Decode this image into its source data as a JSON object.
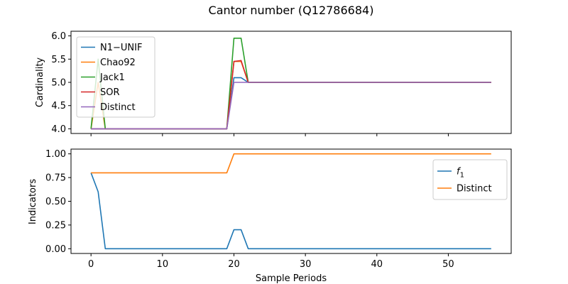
{
  "figure": {
    "title": "Cantor number (Q12786684)",
    "xlabel": "Sample Periods"
  },
  "chart_data": [
    {
      "type": "line",
      "ylabel": "Cardinality",
      "xlim": [
        -2.8,
        58.8
      ],
      "ylim": [
        3.9,
        6.1
      ],
      "xticks": [
        0,
        10,
        20,
        30,
        40,
        50
      ],
      "show_x_tick_labels": false,
      "yticks": [
        4.0,
        4.5,
        5.0,
        5.5,
        6.0
      ],
      "ytick_labels": [
        "4.0",
        "4.5",
        "5.0",
        "5.5",
        "6.0"
      ],
      "legend_position": "upper-left",
      "grid": false,
      "x_range": [
        0,
        56
      ],
      "series": [
        {
          "name": "N1−UNIF",
          "color": "#1f77b4",
          "points": [
            [
              0,
              4
            ],
            [
              1,
              4
            ],
            [
              19,
              4
            ],
            [
              20,
              5.1
            ],
            [
              21,
              5.1
            ],
            [
              22,
              5
            ],
            [
              56,
              5
            ]
          ]
        },
        {
          "name": "Chao92",
          "color": "#ff7f0e",
          "points": [
            [
              0,
              4
            ],
            [
              1,
              5
            ],
            [
              2,
              4
            ],
            [
              19,
              4
            ],
            [
              20,
              5.45
            ],
            [
              21,
              5.45
            ],
            [
              22,
              5
            ],
            [
              56,
              5
            ]
          ]
        },
        {
          "name": "Jack1",
          "color": "#2ca02c",
          "points": [
            [
              0,
              4
            ],
            [
              1,
              5.5
            ],
            [
              2,
              4
            ],
            [
              19,
              4
            ],
            [
              20,
              5.95
            ],
            [
              21,
              5.95
            ],
            [
              22,
              5
            ],
            [
              56,
              5
            ]
          ]
        },
        {
          "name": "SOR",
          "color": "#d62728",
          "points": [
            [
              0,
              4
            ],
            [
              1,
              4
            ],
            [
              19,
              4
            ],
            [
              20,
              5.45
            ],
            [
              21,
              5.47
            ],
            [
              22,
              5
            ],
            [
              56,
              5
            ]
          ]
        },
        {
          "name": "Distinct",
          "color": "#9467bd",
          "points": [
            [
              0,
              4
            ],
            [
              19,
              4
            ],
            [
              20,
              5
            ],
            [
              56,
              5
            ]
          ]
        }
      ]
    },
    {
      "type": "line",
      "ylabel": "Indicators",
      "xlim": [
        -2.8,
        58.8
      ],
      "ylim": [
        -0.05,
        1.05
      ],
      "xticks": [
        0,
        10,
        20,
        30,
        40,
        50
      ],
      "xtick_labels": [
        "0",
        "10",
        "20",
        "30",
        "40",
        "50"
      ],
      "show_x_tick_labels": true,
      "yticks": [
        0.0,
        0.25,
        0.5,
        0.75,
        1.0
      ],
      "ytick_labels": [
        "0.00",
        "0.25",
        "0.50",
        "0.75",
        "1.00"
      ],
      "legend_position": "upper-right",
      "grid": false,
      "series": [
        {
          "name": "f1",
          "label_base": "f",
          "label_sub": "1",
          "color": "#1f77b4",
          "points": [
            [
              0,
              0.8
            ],
            [
              1,
              0.6
            ],
            [
              2,
              0
            ],
            [
              19,
              0
            ],
            [
              20,
              0.2
            ],
            [
              21,
              0.2
            ],
            [
              22,
              0
            ],
            [
              56,
              0
            ]
          ]
        },
        {
          "name": "Distinct",
          "color": "#ff7f0e",
          "points": [
            [
              0,
              0.8
            ],
            [
              19,
              0.8
            ],
            [
              20,
              1
            ],
            [
              56,
              1
            ]
          ]
        }
      ]
    }
  ]
}
